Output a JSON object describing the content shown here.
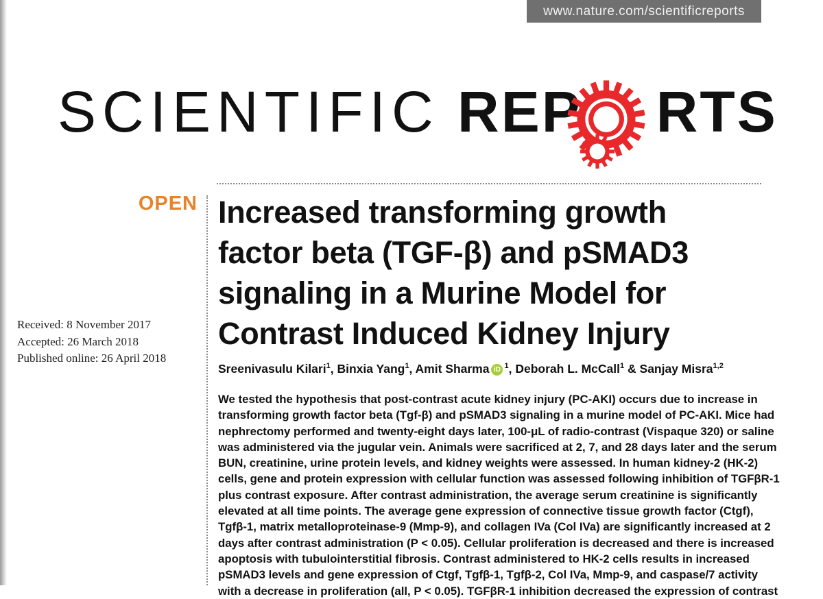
{
  "header": {
    "url": "www.nature.com/scientificreports",
    "journal_light": "SCIENTIFIC",
    "journal_bold": "REPORTS",
    "accent_color": "#e8282a",
    "open_color": "#e8832a"
  },
  "article": {
    "open_label": "OPEN",
    "title_lines": [
      "Increased transforming growth",
      "factor beta (TGF-β) and pSMAD3",
      "signaling in a Murine Model for",
      "Contrast Induced Kidney Injury"
    ],
    "received": "Received: 8 November 2017",
    "accepted": "Accepted: 26 March 2018",
    "published": "Published online: 26 April 2018",
    "authors": [
      {
        "name": "Sreenivasulu Kilari",
        "aff": "1"
      },
      {
        "name": "Binxia Yang",
        "aff": "1"
      },
      {
        "name": "Amit Sharma",
        "aff": "1",
        "orcid": true
      },
      {
        "name": "Deborah L. McCall",
        "aff": "1"
      },
      {
        "name": "Sanjay Misra",
        "aff": "1,2"
      }
    ],
    "orcid_icon": "iD",
    "abstract_lines": [
      "We tested the hypothesis that post-contrast acute kidney injury (PC-AKI) occurs due to increase in",
      "transforming growth factor beta (Tgf-β) and pSMAD3 signaling in a murine model of PC-AKI. Mice had",
      "nephrectomy performed and twenty-eight days later, 100-μL of radio-contrast (Vispaque 320) or saline",
      "was administered via the jugular vein. Animals were sacrificed at 2, 7, and 28 days later and the serum",
      "BUN, creatinine, urine protein levels, and kidney weights were assessed. In human kidney-2 (HK-2)",
      "cells, gene and protein expression with cellular function was assessed following inhibition of TGFβR-1",
      "plus contrast exposure. After contrast administration, the average serum creatinine is significantly",
      "elevated at all time points. The average gene expression of connective tissue growth factor (Ctgf),",
      "Tgfβ-1, matrix metalloproteinase-9 (Mmp-9), and collagen IVa (Col IVa) are significantly increased at 2",
      "days after contrast administration (P < 0.05). Cellular proliferation is decreased and there is increased",
      "apoptosis with tubulointerstitial fibrosis. Contrast administered to HK-2 cells results in increased",
      "pSMAD3 levels and gene expression of Ctgf, Tgfβ-1, Tgfβ-2, Col IVa, Mmp-9, and caspase/7 activity",
      "with a decrease in proliferation (all, P < 0.05). TGFβR-1 inhibition decreased the expression of contrast"
    ]
  }
}
